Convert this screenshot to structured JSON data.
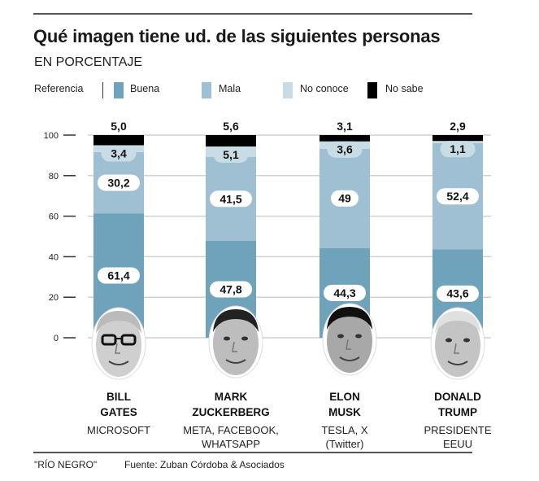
{
  "title": "Qué imagen tiene ud. de las siguientes personas",
  "subtitle": "EN PORCENTAJE",
  "legend": {
    "label": "Referencia",
    "items": [
      {
        "name": "Buena",
        "color": "#6fa3bb"
      },
      {
        "name": "Mala",
        "color": "#9fc0d3"
      },
      {
        "name": "No conoce",
        "color": "#c8dce6"
      },
      {
        "name": "No sabe",
        "color": "#000000"
      }
    ]
  },
  "people": [
    {
      "name_line1": "BILL",
      "name_line2": "GATES",
      "org_line1": "MICROSOFT",
      "org_line2": "",
      "face_icon": "bill-gates-face"
    },
    {
      "name_line1": "MARK",
      "name_line2": "ZUCKERBERG",
      "org_line1": "META, FACEBOOK,",
      "org_line2": "WHATSAPP",
      "face_icon": "mark-zuckerberg-face"
    },
    {
      "name_line1": "ELON",
      "name_line2": "MUSK",
      "org_line1": "TESLA, X",
      "org_line2": "(Twitter)",
      "face_icon": "elon-musk-face"
    },
    {
      "name_line1": "DONALD",
      "name_line2": "TRUMP",
      "org_line1": "PRESIDENTE",
      "org_line2": "EEUU",
      "face_icon": "donald-trump-face"
    }
  ],
  "chart_data": {
    "type": "bar",
    "stacked": true,
    "title": "Qué imagen tiene ud. de las siguientes personas",
    "subtitle": "EN PORCENTAJE",
    "xlabel": "",
    "ylabel": "",
    "ylim": [
      0,
      100
    ],
    "yticks": [
      0,
      20,
      40,
      60,
      80,
      100
    ],
    "grid": true,
    "legend_position": "top-left",
    "categories": [
      "BILL GATES",
      "MARK ZUCKERBERG",
      "ELON MUSK",
      "DONALD TRUMP"
    ],
    "series": [
      {
        "name": "Buena",
        "color": "#6fa3bb",
        "values": [
          61.4,
          47.8,
          44.3,
          43.6
        ],
        "labels": [
          "61,4",
          "47,8",
          "44,3",
          "43,6"
        ]
      },
      {
        "name": "Mala",
        "color": "#9fc0d3",
        "values": [
          30.2,
          41.5,
          49,
          52.4
        ],
        "labels": [
          "30,2",
          "41,5",
          "49",
          "52,4"
        ]
      },
      {
        "name": "No conoce",
        "color": "#c8dce6",
        "values": [
          3.4,
          5.1,
          3.6,
          1.1
        ],
        "labels": [
          "3,4",
          "5,1",
          "3,6",
          "1,1"
        ]
      },
      {
        "name": "No sabe",
        "color": "#000000",
        "values": [
          5.0,
          5.6,
          3.1,
          2.9
        ],
        "labels": [
          "5,0",
          "5,6",
          "3,1",
          "2,9"
        ]
      }
    ]
  },
  "footer": {
    "credit": "\"RÍO NEGRO\"",
    "source": "Fuente: Zuban Córdoba & Asociados"
  }
}
